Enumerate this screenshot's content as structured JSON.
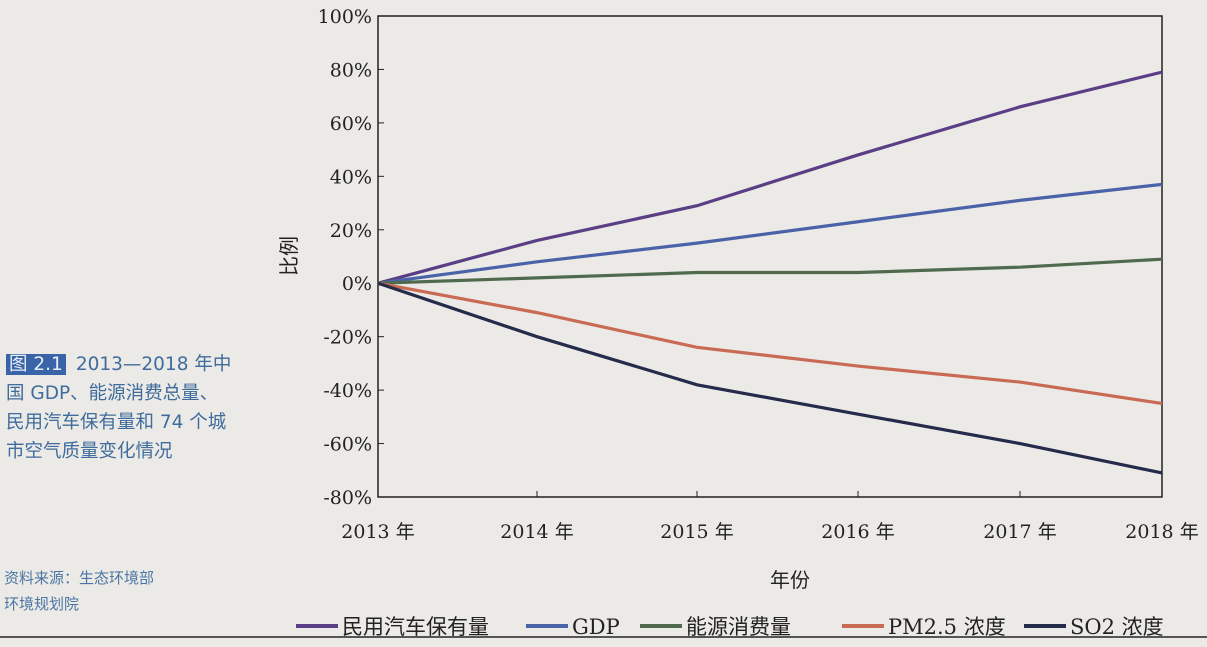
{
  "caption": {
    "figure_label": "图 2.1",
    "text": "2013—2018 年中国 GDP、能源消费总量、民用汽车保有量和 74 个城市空气质量变化情况",
    "source_line1": "资料来源：生态环境部",
    "source_line2": "环境规划院"
  },
  "chart_data": {
    "type": "line",
    "title": "",
    "xlabel": "年份",
    "ylabel": "比例",
    "x": [
      "2013 年",
      "2014 年",
      "2015 年",
      "2016 年",
      "2017 年",
      "2018 年"
    ],
    "ylim": [
      -80,
      100
    ],
    "yticks": [
      100,
      80,
      60,
      40,
      20,
      0,
      -20,
      -40,
      -60,
      -80
    ],
    "ytick_labels": [
      "100%",
      "80%",
      "60%",
      "40%",
      "20%",
      "0%",
      "-20%",
      "-40%",
      "-60%",
      "-80%"
    ],
    "grid": false,
    "legend_position": "bottom",
    "series": [
      {
        "name": "民用汽车保有量",
        "color": "#5a3f86",
        "values": [
          0,
          16,
          29,
          48,
          66,
          79
        ]
      },
      {
        "name": "GDP",
        "color": "#4a63a8",
        "values": [
          0,
          8,
          15,
          23,
          31,
          37
        ]
      },
      {
        "name": "能源消费量",
        "color": "#4f6a4e",
        "values": [
          0,
          2,
          4,
          4,
          6,
          9
        ]
      },
      {
        "name": "PM2.5 浓度",
        "color": "#c96a55",
        "values": [
          0,
          -11,
          -24,
          -31,
          -37,
          -45
        ]
      },
      {
        "name": "SO2 浓度",
        "color": "#252b4a",
        "values": [
          0,
          -20,
          -38,
          -49,
          -60,
          -71
        ]
      }
    ]
  }
}
